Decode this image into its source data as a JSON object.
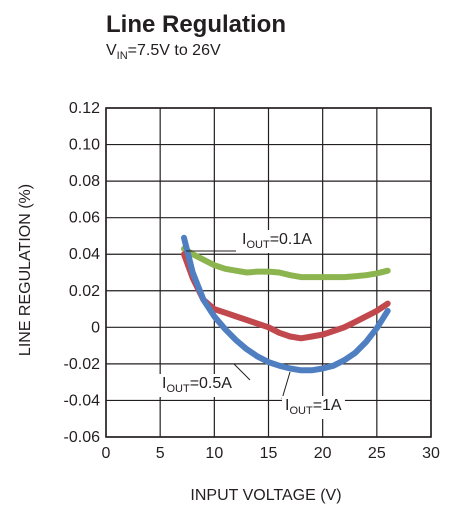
{
  "chart_data": {
    "type": "line",
    "title": "Line Regulation",
    "subtitle": {
      "prefix": "V",
      "sub": "IN",
      "suffix": "=7.5V to 26V"
    },
    "xlabel": "INPUT VOLTAGE (V)",
    "ylabel": "LINE REGULATION (%)",
    "xlim": [
      0,
      30
    ],
    "ylim": [
      -0.06,
      0.12
    ],
    "xticks": [
      0,
      5,
      10,
      15,
      20,
      25,
      30
    ],
    "yticks": [
      -0.06,
      -0.04,
      -0.02,
      0,
      0.02,
      0.04,
      0.06,
      0.08,
      0.1,
      0.12
    ],
    "ytick_labels": [
      "-0.06",
      "-0.04",
      "-0.02",
      "0",
      "0.02",
      "0.04",
      "0.06",
      "0.08",
      "0.10",
      "0.12"
    ],
    "grid": true,
    "series": [
      {
        "name": "IOUT=0.1A",
        "label": {
          "prefix": "I",
          "sub": "OUT",
          "suffix": "=0.1A"
        },
        "color": "#8db54f",
        "x": [
          7.2,
          8,
          9,
          10,
          11,
          12,
          13,
          14,
          15,
          16,
          17,
          18,
          19,
          20,
          21,
          22,
          23,
          24,
          25,
          26
        ],
        "y": [
          0.043,
          0.04,
          0.037,
          0.034,
          0.032,
          0.031,
          0.03,
          0.0305,
          0.0305,
          0.03,
          0.0285,
          0.0275,
          0.0275,
          0.0275,
          0.0275,
          0.0275,
          0.028,
          0.0285,
          0.0295,
          0.031
        ]
      },
      {
        "name": "IOUT=0.5A",
        "label": {
          "prefix": "I",
          "sub": "OUT",
          "suffix": "=0.5A"
        },
        "color": "#c1484c",
        "x": [
          7.2,
          8,
          9,
          10,
          11,
          12,
          13,
          14,
          15,
          16,
          17,
          18,
          19,
          20,
          21,
          22,
          23,
          24,
          25,
          26
        ],
        "y": [
          0.04,
          0.027,
          0.015,
          0.01,
          0.008,
          0.006,
          0.004,
          0.002,
          0.0,
          -0.003,
          -0.005,
          -0.006,
          -0.005,
          -0.004,
          -0.002,
          0.0,
          0.003,
          0.006,
          0.009,
          0.013
        ]
      },
      {
        "name": "IOUT=1A",
        "label": {
          "prefix": "I",
          "sub": "OUT",
          "suffix": "=1A"
        },
        "color": "#4f7fc1",
        "x": [
          7.2,
          8,
          9,
          10,
          11,
          12,
          13,
          14,
          15,
          16,
          17,
          18,
          19,
          20,
          21,
          22,
          23,
          24,
          25,
          26
        ],
        "y": [
          0.049,
          0.03,
          0.015,
          0.006,
          -0.001,
          -0.007,
          -0.012,
          -0.016,
          -0.019,
          -0.021,
          -0.0225,
          -0.0235,
          -0.0235,
          -0.0225,
          -0.021,
          -0.018,
          -0.014,
          -0.008,
          -0.0005,
          0.009
        ]
      }
    ]
  }
}
